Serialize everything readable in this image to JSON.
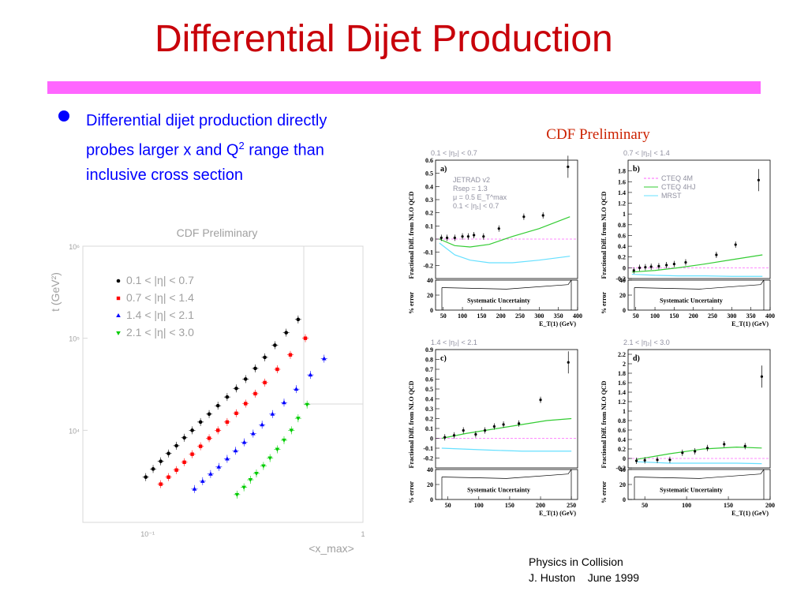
{
  "slide": {
    "title": "Differential Dijet Production",
    "bullet": {
      "text_main": "Differential dijet production directly probes larger x and Q",
      "superscript": "2",
      "text_rest": " range than inclusive  cross section"
    },
    "footer": {
      "line1": "Physics in Collision",
      "line2": "J. Huston    June 1999"
    },
    "accent_color": "#c8000a",
    "rule_color": "#ff66ff",
    "text_color": "#0000ff"
  },
  "chart_data": [
    {
      "type": "scatter",
      "title": "CDF Preliminary",
      "ylabel": "t (GeV²)",
      "xlabel": "<x_max>",
      "xscale": "log",
      "yscale": "log",
      "xlim": [
        0.05,
        1
      ],
      "ylim": [
        1000,
        1000000
      ],
      "x_tick_labels": [
        "10⁻¹",
        "1"
      ],
      "y_tick_labels": [
        "10⁶",
        "10⁵",
        "10⁴"
      ],
      "legend": [
        "0.1 < |η| < 0.7",
        "0.7 < |η| < 1.4",
        "1.4 < |η| < 2.1",
        "2.1 < |η| < 3.0"
      ],
      "colors": [
        "#000000",
        "#ff0000",
        "#0000ff",
        "#00cc00"
      ],
      "series": [
        {
          "name": "0.1 < |η| < 0.7",
          "x": [
            0.098,
            0.106,
            0.115,
            0.125,
            0.136,
            0.148,
            0.161,
            0.176,
            0.193,
            0.212,
            0.234,
            0.258,
            0.285,
            0.316,
            0.35,
            0.39,
            0.44,
            0.5
          ],
          "y": [
            3100,
            3800,
            4600,
            5600,
            6800,
            8300,
            10000,
            12300,
            15000,
            18500,
            23000,
            28500,
            36000,
            47000,
            62000,
            84000,
            115000,
            160000
          ]
        },
        {
          "name": "0.7 < |η| < 1.4",
          "x": [
            0.115,
            0.125,
            0.136,
            0.148,
            0.161,
            0.176,
            0.193,
            0.212,
            0.234,
            0.258,
            0.285,
            0.316,
            0.35,
            0.4,
            0.46,
            0.54
          ],
          "y": [
            2600,
            3100,
            3700,
            4500,
            5500,
            6700,
            8200,
            10000,
            12300,
            15300,
            19500,
            25000,
            33000,
            46000,
            66000,
            100000
          ]
        },
        {
          "name": "1.4 < |η| < 2.1",
          "x": [
            0.165,
            0.18,
            0.196,
            0.214,
            0.234,
            0.256,
            0.281,
            0.309,
            0.34,
            0.38,
            0.43,
            0.49,
            0.57,
            0.66
          ],
          "y": [
            2300,
            2800,
            3350,
            4000,
            4900,
            6000,
            7400,
            9200,
            11500,
            15000,
            20000,
            28000,
            40000,
            60000
          ]
        },
        {
          "name": "2.1 < |η| < 3.0",
          "x": [
            0.26,
            0.28,
            0.3,
            0.32,
            0.345,
            0.37,
            0.4,
            0.43,
            0.465,
            0.5,
            0.55
          ],
          "y": [
            2000,
            2400,
            2900,
            3400,
            4100,
            5000,
            6200,
            7800,
            10000,
            13500,
            19000
          ]
        }
      ]
    },
    {
      "type": "line",
      "title": "CDF Preliminary",
      "panels": [
        {
          "label": "a)",
          "header": "0.1 < |η₂| < 0.7",
          "ylabel": "Fractional Diff. from NLO QCD",
          "xlabel": "E_T(1) (GeV)",
          "xlim": [
            30,
            400
          ],
          "ylim": [
            -0.3,
            0.6
          ],
          "x_ticks": [
            50,
            100,
            150,
            200,
            250,
            300,
            350,
            400
          ],
          "y_ticks": [
            -0.2,
            -0.1,
            0,
            0.1,
            0.2,
            0.3,
            0.4,
            0.5,
            0.6
          ],
          "annotations": [
            "JETRAD v2",
            "Rsep = 1.3",
            "μ = 0.5 E_T^max",
            "0.1 < |η₁| < 0.7"
          ],
          "data": {
            "x": [
              45,
              60,
              80,
              100,
              115,
              130,
              155,
              195,
              260,
              310,
              375
            ],
            "y": [
              0.01,
              0.01,
              0.01,
              0.02,
              0.02,
              0.03,
              0.02,
              0.08,
              0.17,
              0.18,
              0.55
            ]
          },
          "curve_green": {
            "x": [
              40,
              80,
              120,
              170,
              230,
              300,
              380
            ],
            "y": [
              0,
              -0.05,
              -0.06,
              -0.04,
              0.02,
              0.08,
              0.17
            ]
          },
          "curve_cyan": {
            "x": [
              40,
              80,
              120,
              170,
              230,
              300,
              380
            ],
            "y": [
              -0.03,
              -0.12,
              -0.16,
              -0.18,
              -0.18,
              -0.16,
              -0.13
            ]
          },
          "error_ylim": [
            0,
            40
          ],
          "error_label": "Systematic Uncertainty"
        },
        {
          "label": "b)",
          "header": "0.7 < |η₂| < 1.4",
          "ylabel": "Fractional Diff. from NLO QCD",
          "xlabel": "E_T(1) (GeV)",
          "xlim": [
            30,
            400
          ],
          "ylim": [
            -0.2,
            2.0
          ],
          "x_ticks": [
            50,
            100,
            150,
            200,
            250,
            300,
            350,
            400
          ],
          "y_ticks": [
            -0.2,
            0,
            0.2,
            0.4,
            0.6,
            0.8,
            1,
            1.2,
            1.4,
            1.6,
            1.8
          ],
          "legend": [
            "CTEQ 4M",
            "CTEQ 4HJ",
            "MRST"
          ],
          "data": {
            "x": [
              45,
              60,
              75,
              90,
              110,
              130,
              150,
              180,
              260,
              310,
              370
            ],
            "y": [
              -0.05,
              0,
              0.01,
              0.02,
              0.03,
              0.05,
              0.07,
              0.1,
              0.24,
              0.43,
              1.63
            ]
          },
          "curve_green": {
            "x": [
              40,
              100,
              160,
              230,
              300,
              380
            ],
            "y": [
              -0.08,
              -0.05,
              0,
              0.07,
              0.15,
              0.24
            ]
          },
          "curve_cyan": {
            "x": [
              40,
              100,
              160,
              230,
              300,
              380
            ],
            "y": [
              -0.12,
              -0.14,
              -0.15,
              -0.15,
              -0.16,
              -0.16
            ]
          },
          "error_ylim": [
            0,
            40
          ],
          "error_label": "Systematic Uncertainty"
        },
        {
          "label": "c)",
          "header": "1.4 < |η₂| < 2.1",
          "ylabel": "Fractional Diff. from NLO QCD",
          "xlabel": "E_T(1) (GeV)",
          "xlim": [
            30,
            260
          ],
          "ylim": [
            -0.3,
            0.9
          ],
          "x_ticks": [
            50,
            100,
            150,
            200,
            250
          ],
          "y_ticks": [
            -0.2,
            -0.1,
            0,
            0.1,
            0.2,
            0.3,
            0.4,
            0.5,
            0.6,
            0.7,
            0.8,
            0.9
          ],
          "data": {
            "x": [
              45,
              60,
              75,
              95,
              110,
              125,
              140,
              165,
              200,
              245
            ],
            "y": [
              0.01,
              0.03,
              0.08,
              0.04,
              0.08,
              0.12,
              0.14,
              0.15,
              0.39,
              0.77
            ]
          },
          "curve_green": {
            "x": [
              40,
              80,
              120,
              170,
              210,
              250
            ],
            "y": [
              0,
              0.05,
              0.09,
              0.14,
              0.18,
              0.2
            ]
          },
          "curve_cyan": {
            "x": [
              40,
              80,
              120,
              170,
              210,
              250
            ],
            "y": [
              -0.1,
              -0.11,
              -0.12,
              -0.13,
              -0.13,
              -0.13
            ]
          },
          "error_ylim": [
            0,
            40
          ],
          "error_label": "Systematic Uncertainty"
        },
        {
          "label": "d)",
          "header": "2.1 < |η₂| < 3.0",
          "ylabel": "Fractional Diff. from NLO QCD",
          "xlabel": "E_T(1) (GeV)",
          "xlim": [
            30,
            200
          ],
          "ylim": [
            -0.2,
            2.3
          ],
          "x_ticks": [
            50,
            100,
            150,
            200
          ],
          "y_ticks": [
            -0.2,
            0,
            0.2,
            0.4,
            0.6,
            0.8,
            1,
            1.2,
            1.4,
            1.6,
            1.8,
            2,
            2.2
          ],
          "data": {
            "x": [
              40,
              50,
              65,
              80,
              95,
              110,
              125,
              145,
              170,
              190
            ],
            "y": [
              -0.05,
              -0.04,
              -0.03,
              -0.03,
              0.12,
              0.15,
              0.22,
              0.3,
              0.26,
              1.73
            ]
          },
          "curve_green": {
            "x": [
              40,
              80,
              120,
              160,
              190
            ],
            "y": [
              -0.02,
              0.1,
              0.2,
              0.24,
              0.22
            ]
          },
          "curve_cyan": {
            "x": [
              40,
              80,
              120,
              160,
              190
            ],
            "y": [
              -0.07,
              -0.1,
              -0.1,
              -0.1,
              -0.11
            ]
          },
          "error_ylim": [
            0,
            40
          ],
          "error_label": "Systematic Uncertainty"
        }
      ]
    }
  ]
}
